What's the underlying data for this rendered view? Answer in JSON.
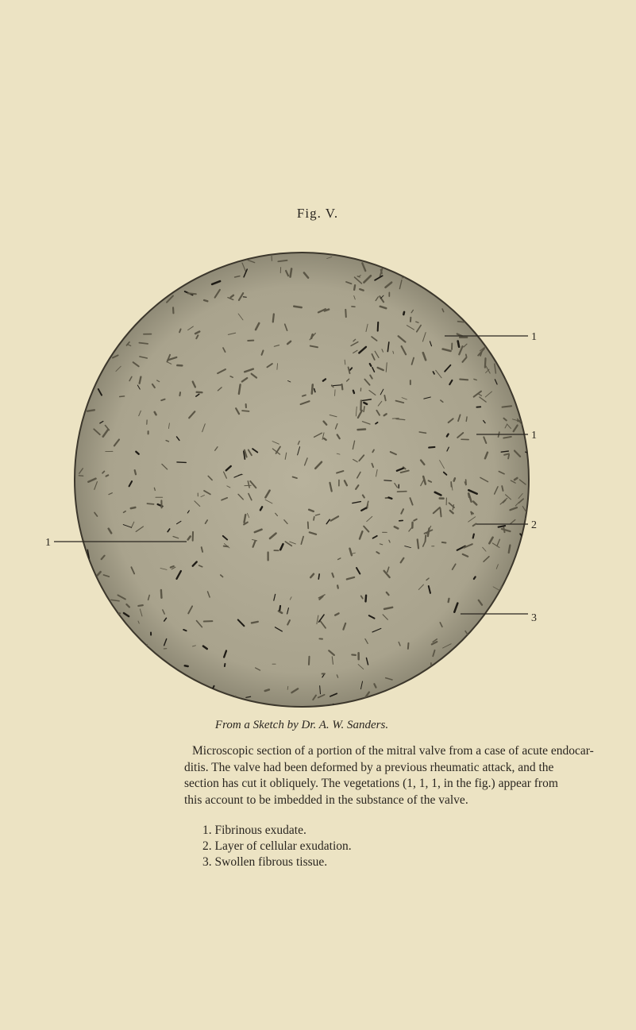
{
  "figure": {
    "title": "Fig. V.",
    "labels": {
      "right_1a": "1",
      "right_1b": "1",
      "right_2": "2",
      "right_3": "3",
      "left_1": "1"
    },
    "caption": "From a Sketch by Dr. A. W. Sanders."
  },
  "description": {
    "lines": [
      "Microscopic section of a portion of the mitral valve from a case of acute endocar-",
      "ditis. The valve had been deformed by a previous rheumatic attack, and the",
      "section has cut it obliquely. The vegetations (1, 1, 1, in the fig.) appear from",
      "this account to be imbedded in the substance of the valve."
    ]
  },
  "legend": {
    "items": [
      "1. Fibrinous exudate.",
      "2. Layer of cellular exudation.",
      "3. Swollen fibrous tissue."
    ]
  }
}
